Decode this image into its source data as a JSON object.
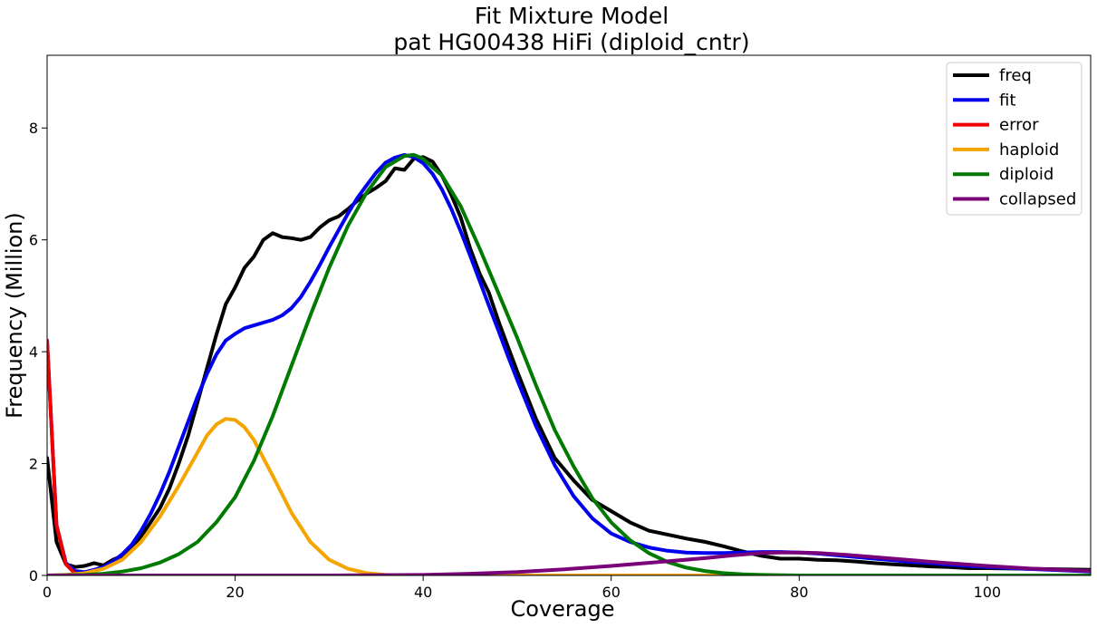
{
  "chart_data": {
    "type": "line",
    "title": "Fit Mixture Model",
    "subtitle": "pat HG00438 HiFi (diploid_cntr)",
    "xlabel": "Coverage",
    "ylabel": "Frequency (Million)",
    "xlim": [
      0,
      111
    ],
    "ylim": [
      0,
      9.3
    ],
    "xticks": [
      0,
      20,
      40,
      60,
      80,
      100
    ],
    "yticks": [
      0,
      2,
      4,
      6,
      8
    ],
    "grid": false,
    "legend_position": "top-right",
    "series": [
      {
        "name": "freq",
        "color": "#000000",
        "x": [
          0,
          1,
          2,
          3,
          4,
          5,
          6,
          7,
          8,
          9,
          10,
          11,
          12,
          13,
          14,
          15,
          16,
          17,
          18,
          19,
          20,
          21,
          22,
          23,
          24,
          25,
          26,
          27,
          28,
          29,
          30,
          31,
          32,
          33,
          34,
          35,
          36,
          37,
          38,
          39,
          40,
          41,
          42,
          43,
          44,
          45,
          46,
          47,
          48,
          49,
          50,
          52,
          54,
          56,
          58,
          60,
          62,
          64,
          66,
          68,
          70,
          72,
          74,
          76,
          78,
          80,
          82,
          84,
          86,
          88,
          90,
          92,
          94,
          96,
          98,
          100,
          104,
          108,
          111
        ],
        "values": [
          2.1,
          0.6,
          0.2,
          0.15,
          0.17,
          0.22,
          0.18,
          0.28,
          0.35,
          0.5,
          0.7,
          0.95,
          1.2,
          1.55,
          2.0,
          2.5,
          3.1,
          3.7,
          4.3,
          4.85,
          5.15,
          5.5,
          5.7,
          6.0,
          6.12,
          6.05,
          6.03,
          6.0,
          6.05,
          6.22,
          6.35,
          6.42,
          6.55,
          6.7,
          6.83,
          6.93,
          7.05,
          7.28,
          7.25,
          7.45,
          7.48,
          7.4,
          7.15,
          6.8,
          6.4,
          5.85,
          5.4,
          5.05,
          4.55,
          4.1,
          3.65,
          2.8,
          2.1,
          1.7,
          1.35,
          1.15,
          0.95,
          0.8,
          0.73,
          0.66,
          0.6,
          0.52,
          0.43,
          0.35,
          0.3,
          0.3,
          0.28,
          0.27,
          0.25,
          0.22,
          0.2,
          0.18,
          0.16,
          0.15,
          0.13,
          0.13,
          0.12,
          0.11,
          0.1
        ]
      },
      {
        "name": "fit",
        "color": "#0000ee",
        "x": [
          0,
          1,
          2,
          3,
          4,
          5,
          6,
          7,
          8,
          9,
          10,
          11,
          12,
          13,
          14,
          15,
          16,
          17,
          18,
          19,
          20,
          21,
          22,
          23,
          24,
          25,
          26,
          27,
          28,
          29,
          30,
          31,
          32,
          33,
          34,
          35,
          36,
          37,
          38,
          39,
          40,
          41,
          42,
          43,
          44,
          45,
          46,
          47,
          48,
          49,
          50,
          52,
          54,
          56,
          58,
          60,
          62,
          64,
          66,
          68,
          70,
          72,
          74,
          76,
          78,
          80,
          82,
          84,
          86,
          88,
          90,
          92,
          94,
          96,
          98,
          100,
          104,
          108,
          111
        ],
        "values": [
          4.2,
          0.9,
          0.22,
          0.08,
          0.06,
          0.1,
          0.15,
          0.25,
          0.38,
          0.55,
          0.8,
          1.1,
          1.45,
          1.85,
          2.3,
          2.75,
          3.2,
          3.6,
          3.95,
          4.2,
          4.32,
          4.42,
          4.47,
          4.52,
          4.57,
          4.65,
          4.78,
          4.98,
          5.25,
          5.55,
          5.87,
          6.17,
          6.47,
          6.75,
          6.98,
          7.2,
          7.38,
          7.47,
          7.52,
          7.48,
          7.37,
          7.18,
          6.9,
          6.55,
          6.15,
          5.72,
          5.27,
          4.82,
          4.38,
          3.93,
          3.5,
          2.67,
          1.97,
          1.42,
          1.02,
          0.75,
          0.6,
          0.5,
          0.44,
          0.41,
          0.4,
          0.4,
          0.41,
          0.42,
          0.42,
          0.41,
          0.39,
          0.36,
          0.33,
          0.3,
          0.27,
          0.24,
          0.22,
          0.19,
          0.17,
          0.15,
          0.12,
          0.09,
          0.07
        ]
      },
      {
        "name": "error",
        "color": "#ee0000",
        "x": [
          0,
          1,
          2,
          3,
          4,
          5,
          6,
          8,
          10,
          20,
          40,
          60,
          80,
          100,
          111
        ],
        "values": [
          4.2,
          0.9,
          0.2,
          0.03,
          0.01,
          0,
          0,
          0,
          0,
          0,
          0,
          0,
          0,
          0,
          0
        ]
      },
      {
        "name": "haploid",
        "color": "#f5a500",
        "x": [
          0,
          2,
          4,
          6,
          8,
          10,
          12,
          14,
          16,
          17,
          18,
          19,
          20,
          21,
          22,
          23,
          24,
          25,
          26,
          28,
          30,
          32,
          34,
          36,
          38,
          40,
          45,
          50,
          60,
          80,
          100,
          111
        ],
        "values": [
          0,
          0.01,
          0.04,
          0.12,
          0.28,
          0.6,
          1.05,
          1.6,
          2.2,
          2.5,
          2.7,
          2.8,
          2.78,
          2.65,
          2.42,
          2.1,
          1.78,
          1.45,
          1.12,
          0.6,
          0.28,
          0.12,
          0.04,
          0.01,
          0,
          0,
          0,
          0,
          0,
          0,
          0,
          0
        ]
      },
      {
        "name": "diploid",
        "color": "#007a00",
        "x": [
          0,
          4,
          6,
          8,
          10,
          12,
          14,
          16,
          18,
          20,
          22,
          24,
          26,
          28,
          30,
          32,
          34,
          36,
          38,
          39,
          40,
          42,
          44,
          46,
          48,
          50,
          52,
          54,
          56,
          58,
          60,
          62,
          64,
          66,
          68,
          70,
          72,
          74,
          76,
          80,
          90,
          100,
          111
        ],
        "values": [
          0,
          0.01,
          0.03,
          0.07,
          0.13,
          0.23,
          0.38,
          0.6,
          0.95,
          1.4,
          2.05,
          2.85,
          3.75,
          4.65,
          5.5,
          6.25,
          6.85,
          7.3,
          7.5,
          7.52,
          7.45,
          7.15,
          6.6,
          5.85,
          5.05,
          4.25,
          3.4,
          2.6,
          1.95,
          1.38,
          0.95,
          0.63,
          0.4,
          0.24,
          0.14,
          0.08,
          0.04,
          0.02,
          0.01,
          0,
          0,
          0,
          0
        ]
      },
      {
        "name": "collapsed",
        "color": "#7a007a",
        "x": [
          0,
          10,
          20,
          30,
          40,
          45,
          50,
          55,
          60,
          65,
          70,
          73,
          76,
          78,
          80,
          82,
          85,
          90,
          95,
          100,
          105,
          111
        ],
        "values": [
          0,
          0,
          0,
          0,
          0.01,
          0.03,
          0.06,
          0.11,
          0.17,
          0.24,
          0.31,
          0.36,
          0.4,
          0.41,
          0.41,
          0.4,
          0.37,
          0.3,
          0.23,
          0.17,
          0.12,
          0.08
        ]
      }
    ]
  }
}
